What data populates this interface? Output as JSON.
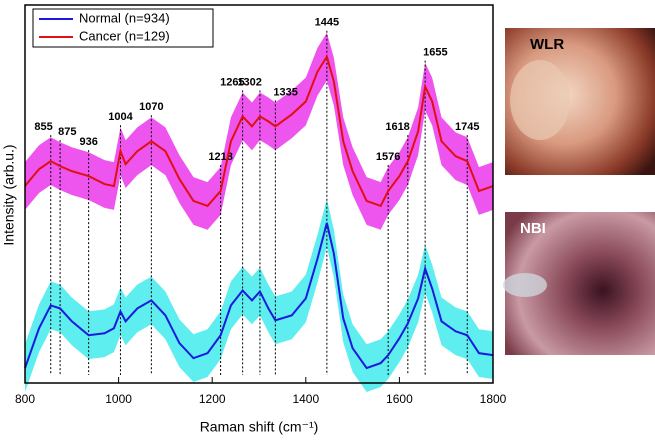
{
  "chart_data": {
    "type": "line",
    "xlabel": "Raman shift (cm⁻¹)",
    "ylabel": "Intensity (arb.u.)",
    "x": [
      800,
      830,
      855,
      875,
      900,
      936,
      970,
      990,
      1004,
      1015,
      1040,
      1070,
      1100,
      1130,
      1160,
      1190,
      1218,
      1240,
      1265,
      1285,
      1302,
      1320,
      1335,
      1370,
      1400,
      1425,
      1445,
      1460,
      1480,
      1500,
      1530,
      1560,
      1576,
      1600,
      1618,
      1640,
      1655,
      1670,
      1690,
      1720,
      1745,
      1770,
      1800
    ],
    "series": [
      {
        "name": "Normal (n=934)",
        "color": "#1a1adc",
        "band_color": "#5eeef0",
        "spread": 24,
        "values": [
          15,
          55,
          78,
          75,
          62,
          48,
          50,
          55,
          72,
          62,
          75,
          83,
          68,
          40,
          25,
          30,
          48,
          78,
          93,
          83,
          92,
          75,
          63,
          68,
          85,
          125,
          161,
          130,
          65,
          35,
          15,
          20,
          28,
          45,
          60,
          85,
          115,
          95,
          62,
          52,
          48,
          30,
          28
        ]
      },
      {
        "name": "Cancer (n=129)",
        "color": "#e01010",
        "band_color": "#ee55ee",
        "spread": 24,
        "values": [
          198,
          215,
          223,
          218,
          213,
          208,
          200,
          198,
          233,
          220,
          233,
          243,
          233,
          205,
          183,
          178,
          193,
          243,
          268,
          258,
          268,
          263,
          258,
          270,
          283,
          313,
          328,
          303,
          243,
          213,
          183,
          178,
          193,
          208,
          223,
          253,
          298,
          283,
          243,
          228,
          223,
          193,
          198
        ]
      }
    ],
    "peaks": [
      855,
      875,
      936,
      1004,
      1070,
      1218,
      1265,
      1302,
      1335,
      1445,
      1576,
      1618,
      1655,
      1745
    ],
    "xlim": [
      800,
      1800
    ],
    "xticks": [
      800,
      1000,
      1200,
      1400,
      1600,
      1800
    ],
    "ylim": [
      0,
      380
    ],
    "legend": "upper-left"
  },
  "images": [
    {
      "label": "WLR"
    },
    {
      "label": "NBI"
    }
  ]
}
